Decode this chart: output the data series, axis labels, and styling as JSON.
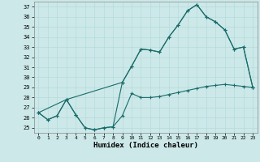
{
  "xlabel": "Humidex (Indice chaleur)",
  "background_color": "#cce8e8",
  "line_color": "#1a6b6b",
  "xlim": [
    -0.5,
    23.5
  ],
  "ylim": [
    24.5,
    37.5
  ],
  "xticks": [
    0,
    1,
    2,
    3,
    4,
    5,
    6,
    7,
    8,
    9,
    10,
    11,
    12,
    13,
    14,
    15,
    16,
    17,
    18,
    19,
    20,
    21,
    22,
    23
  ],
  "yticks": [
    25,
    26,
    27,
    28,
    29,
    30,
    31,
    32,
    33,
    34,
    35,
    36,
    37
  ],
  "series1_x": [
    0,
    1,
    2,
    3,
    4,
    5,
    6,
    7,
    8,
    9,
    10,
    11,
    12,
    13,
    14,
    15,
    16,
    17,
    18,
    19,
    20,
    21,
    22,
    23
  ],
  "series1_y": [
    26.5,
    25.8,
    26.2,
    27.8,
    26.3,
    25.0,
    24.8,
    25.0,
    25.1,
    26.2,
    28.4,
    28.0,
    28.0,
    28.1,
    28.3,
    28.5,
    28.7,
    28.9,
    29.1,
    29.2,
    29.3,
    29.2,
    29.1,
    29.0
  ],
  "series2_x": [
    0,
    1,
    2,
    3,
    4,
    5,
    6,
    7,
    8,
    9,
    10,
    11,
    12,
    13,
    14,
    15,
    16,
    17,
    18,
    19,
    20,
    21,
    22,
    23
  ],
  "series2_y": [
    26.5,
    25.8,
    26.2,
    27.8,
    26.3,
    25.0,
    24.8,
    25.0,
    25.1,
    29.5,
    31.1,
    32.8,
    32.7,
    32.5,
    34.0,
    35.2,
    36.6,
    37.2,
    36.0,
    35.5,
    34.7,
    32.8,
    33.0,
    29.0
  ],
  "series3_x": [
    0,
    3,
    9,
    10,
    11,
    12,
    13,
    14,
    15,
    16,
    17,
    18,
    19,
    20,
    21,
    22,
    23
  ],
  "series3_y": [
    26.5,
    27.8,
    29.5,
    31.1,
    32.8,
    32.7,
    32.5,
    34.0,
    35.2,
    36.6,
    37.2,
    36.0,
    35.5,
    34.7,
    32.8,
    33.0,
    29.0
  ]
}
